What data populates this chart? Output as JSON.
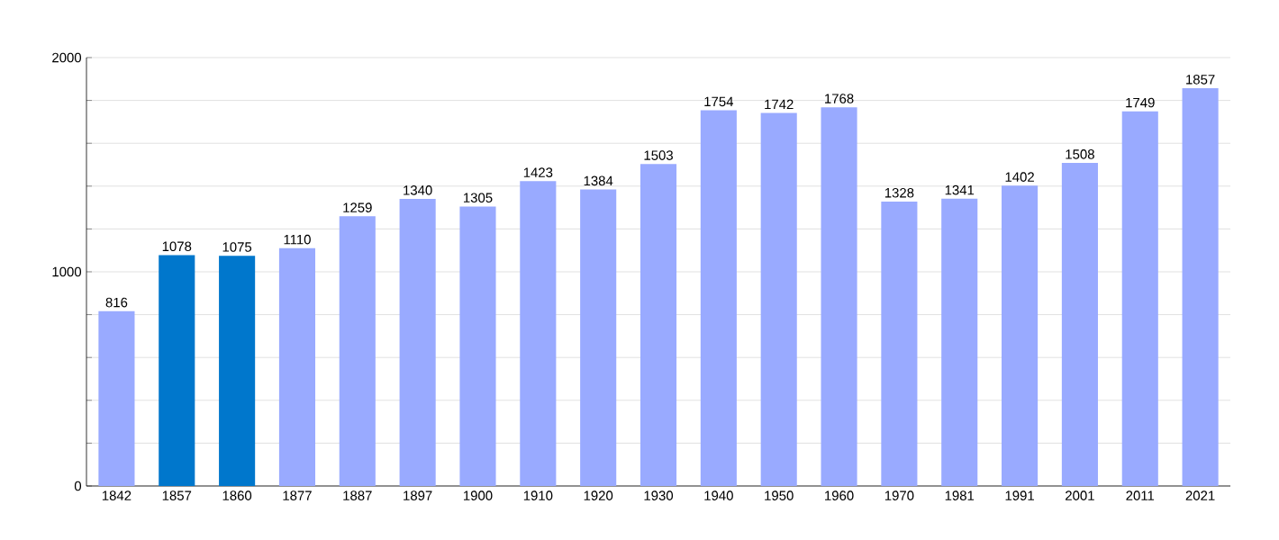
{
  "chart_data": {
    "type": "bar",
    "categories": [
      "1842",
      "1857",
      "1860",
      "1877",
      "1887",
      "1897",
      "1900",
      "1910",
      "1920",
      "1930",
      "1940",
      "1950",
      "1960",
      "1970",
      "1981",
      "1991",
      "2001",
      "2011",
      "2021"
    ],
    "values": [
      816,
      1078,
      1075,
      1110,
      1259,
      1340,
      1305,
      1423,
      1384,
      1503,
      1754,
      1742,
      1768,
      1328,
      1341,
      1402,
      1508,
      1749,
      1857
    ],
    "colors": [
      "#99aaff",
      "#0077cc",
      "#0077cc",
      "#99aaff",
      "#99aaff",
      "#99aaff",
      "#99aaff",
      "#99aaff",
      "#99aaff",
      "#99aaff",
      "#99aaff",
      "#99aaff",
      "#99aaff",
      "#99aaff",
      "#99aaff",
      "#99aaff",
      "#99aaff",
      "#99aaff",
      "#99aaff"
    ],
    "ylim": [
      0,
      2000
    ],
    "yticks": [
      0,
      {
        "value": 200,
        "label": null
      },
      {
        "value": 400,
        "label": null
      },
      {
        "value": 600,
        "label": null
      },
      {
        "value": 800,
        "label": null
      },
      1000,
      {
        "value": 1200,
        "label": null
      },
      {
        "value": 1400,
        "label": null
      },
      {
        "value": 1600,
        "label": null
      },
      {
        "value": 1800,
        "label": null
      },
      2000
    ],
    "grid": "y",
    "data_labels": true
  }
}
